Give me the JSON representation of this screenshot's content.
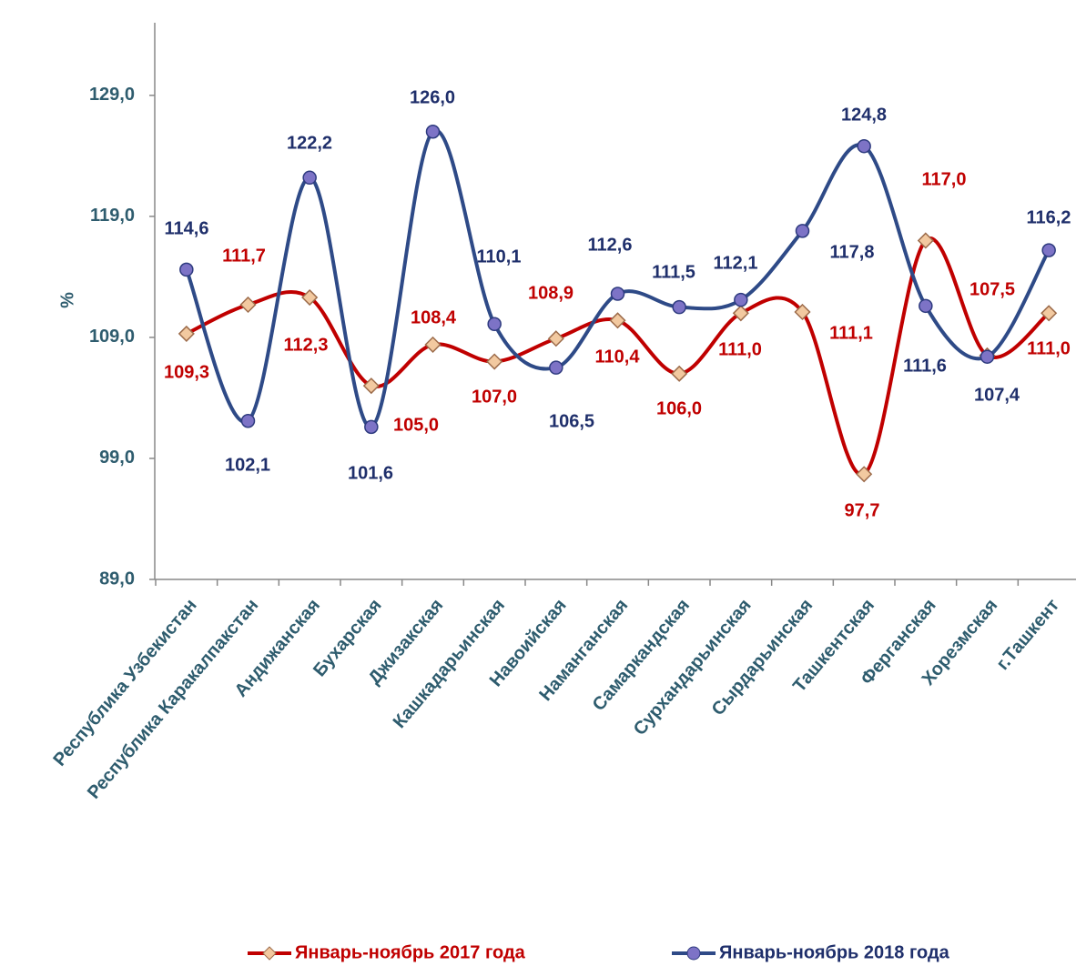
{
  "chart_data": {
    "type": "line",
    "y_label": "%",
    "categories": [
      "Республика Узбекистан",
      "Республика  Каракалпакстан",
      "Андижанская",
      "Бухарская",
      "Джизакская",
      "Кашкадарьинская",
      "Навоийская",
      "Наманганская",
      "Самаркандская",
      "Сурхандарьинская",
      "Сырдарьинская",
      "Ташкентская",
      "Ферганская",
      "Хорезмская",
      "г.Ташкент"
    ],
    "series": [
      {
        "name": "Январь-ноябрь 2017 года",
        "color": "#c00000",
        "values": [
          109.3,
          111.7,
          112.3,
          105.0,
          108.4,
          107.0,
          108.9,
          110.4,
          106.0,
          111.0,
          111.1,
          97.7,
          117.0,
          107.5,
          111.0
        ],
        "value_labels": [
          "109,3",
          "111,7",
          "112,3",
          "105,0",
          "108,4",
          "107,0",
          "108,9",
          "110,4",
          "106,0",
          "111,0",
          "111,1",
          "97,7",
          "117,0",
          "107,5",
          "111,0"
        ]
      },
      {
        "name": "Январь-ноябрь 2018 года",
        "color": "#2e4a87",
        "values": [
          114.6,
          102.1,
          122.2,
          101.6,
          126.0,
          110.1,
          106.5,
          112.6,
          111.5,
          112.1,
          117.8,
          124.8,
          111.6,
          107.4,
          116.2
        ],
        "value_labels": [
          "114,6",
          "102,1",
          "122,2",
          "101,6",
          "126,0",
          "110,1",
          "106,5",
          "112,6",
          "111,5",
          "112,1",
          "117,8",
          "124,8",
          "111,6",
          "107,4",
          "116,2"
        ]
      }
    ],
    "ylim": [
      89,
      135
    ],
    "yticks": [
      {
        "value": 89,
        "label": "89,0"
      },
      {
        "value": 99,
        "label": "99,0"
      },
      {
        "value": 109,
        "label": "109,0"
      },
      {
        "value": 119,
        "label": "119,0"
      },
      {
        "value": 129,
        "label": "129,0"
      }
    ],
    "grid": false,
    "legend": "bottom"
  }
}
